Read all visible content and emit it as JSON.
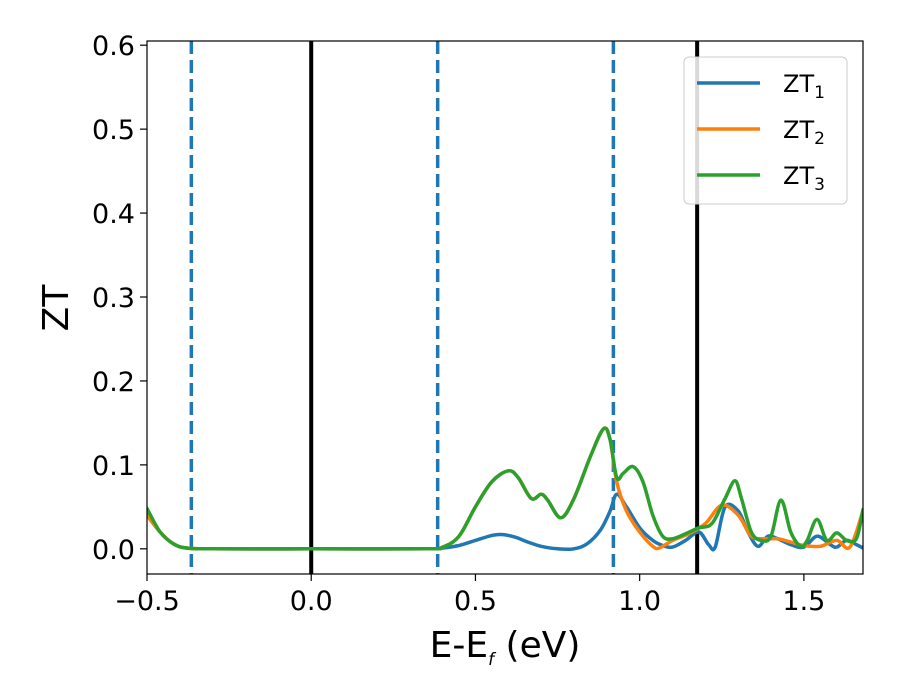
{
  "chart_data": {
    "type": "line",
    "xlabel": "E-E",
    "xlabel_sub": "f",
    "xlabel_unit": " (eV)",
    "ylabel": "ZT",
    "xlim": [
      -0.5,
      1.68
    ],
    "ylim": [
      -0.03,
      0.605
    ],
    "xticks": [
      -0.5,
      0.0,
      0.5,
      1.0,
      1.5
    ],
    "xtick_labels": [
      "−0.5",
      "0.0",
      "0.5",
      "1.0",
      "1.5"
    ],
    "yticks": [
      0.0,
      0.1,
      0.2,
      0.3,
      0.4,
      0.5,
      0.6
    ],
    "ytick_labels": [
      "0.0",
      "0.1",
      "0.2",
      "0.3",
      "0.4",
      "0.5",
      "0.6"
    ],
    "legend_placement": "top-right",
    "grid": false,
    "vlines": [
      {
        "x": -0.365,
        "style": "dashed",
        "color": "#1f77b4"
      },
      {
        "x": 0.0,
        "style": "solid",
        "color": "#000000"
      },
      {
        "x": 0.385,
        "style": "dashed",
        "color": "#1f77b4"
      },
      {
        "x": 0.92,
        "style": "dashed",
        "color": "#1f77b4"
      },
      {
        "x": 1.175,
        "style": "solid",
        "color": "#000000"
      }
    ],
    "series": [
      {
        "name": "ZT",
        "name_sub": "1",
        "color": "#1f77b4",
        "points": [
          [
            -0.5,
            0.04
          ],
          [
            -0.46,
            0.02
          ],
          [
            -0.42,
            0.006
          ],
          [
            -0.38,
            0.001
          ],
          [
            -0.3,
            0.0
          ],
          [
            0.0,
            0.0
          ],
          [
            0.35,
            0.0
          ],
          [
            0.4,
            0.001
          ],
          [
            0.45,
            0.004
          ],
          [
            0.5,
            0.01
          ],
          [
            0.55,
            0.016
          ],
          [
            0.58,
            0.017
          ],
          [
            0.62,
            0.014
          ],
          [
            0.66,
            0.008
          ],
          [
            0.7,
            0.003
          ],
          [
            0.75,
            0.0
          ],
          [
            0.8,
            0.0
          ],
          [
            0.84,
            0.006
          ],
          [
            0.88,
            0.022
          ],
          [
            0.91,
            0.045
          ],
          [
            0.93,
            0.065
          ],
          [
            0.96,
            0.05
          ],
          [
            1.0,
            0.025
          ],
          [
            1.04,
            0.01
          ],
          [
            1.07,
            0.004
          ],
          [
            1.1,
            0.002
          ],
          [
            1.14,
            0.01
          ],
          [
            1.18,
            0.02
          ],
          [
            1.21,
            0.005
          ],
          [
            1.23,
            0.002
          ],
          [
            1.26,
            0.05
          ],
          [
            1.3,
            0.045
          ],
          [
            1.33,
            0.02
          ],
          [
            1.36,
            0.003
          ],
          [
            1.39,
            0.015
          ],
          [
            1.42,
            0.012
          ],
          [
            1.46,
            0.005
          ],
          [
            1.5,
            0.002
          ],
          [
            1.54,
            0.015
          ],
          [
            1.58,
            0.005
          ],
          [
            1.6,
            0.002
          ],
          [
            1.63,
            0.01
          ],
          [
            1.66,
            0.005
          ],
          [
            1.68,
            0.001
          ]
        ]
      },
      {
        "name": "ZT",
        "name_sub": "2",
        "color": "#ff7f0e",
        "points": [
          [
            -0.5,
            0.04
          ],
          [
            -0.46,
            0.02
          ],
          [
            -0.42,
            0.006
          ],
          [
            -0.38,
            0.001
          ],
          [
            -0.3,
            0.0
          ],
          [
            0.0,
            0.0
          ],
          [
            0.35,
            0.0
          ],
          [
            0.4,
            0.002
          ],
          [
            0.45,
            0.015
          ],
          [
            0.5,
            0.05
          ],
          [
            0.55,
            0.08
          ],
          [
            0.6,
            0.093
          ],
          [
            0.63,
            0.085
          ],
          [
            0.67,
            0.06
          ],
          [
            0.7,
            0.065
          ],
          [
            0.72,
            0.058
          ],
          [
            0.76,
            0.037
          ],
          [
            0.8,
            0.06
          ],
          [
            0.85,
            0.11
          ],
          [
            0.89,
            0.143
          ],
          [
            0.91,
            0.13
          ],
          [
            0.93,
            0.08
          ],
          [
            0.96,
            0.045
          ],
          [
            1.0,
            0.02
          ],
          [
            1.04,
            0.003
          ],
          [
            1.06,
            0.001
          ],
          [
            1.1,
            0.01
          ],
          [
            1.15,
            0.018
          ],
          [
            1.2,
            0.03
          ],
          [
            1.25,
            0.052
          ],
          [
            1.3,
            0.04
          ],
          [
            1.34,
            0.015
          ],
          [
            1.38,
            0.012
          ],
          [
            1.42,
            0.012
          ],
          [
            1.46,
            0.008
          ],
          [
            1.5,
            0.004
          ],
          [
            1.55,
            0.003
          ],
          [
            1.6,
            0.01
          ],
          [
            1.64,
            0.002
          ],
          [
            1.68,
            0.045
          ]
        ]
      },
      {
        "name": "ZT",
        "name_sub": "3",
        "color": "#2ca02c",
        "points": [
          [
            -0.5,
            0.048
          ],
          [
            -0.46,
            0.02
          ],
          [
            -0.42,
            0.006
          ],
          [
            -0.38,
            0.001
          ],
          [
            -0.3,
            0.0
          ],
          [
            0.0,
            0.0
          ],
          [
            0.35,
            0.0
          ],
          [
            0.4,
            0.002
          ],
          [
            0.45,
            0.015
          ],
          [
            0.5,
            0.05
          ],
          [
            0.55,
            0.08
          ],
          [
            0.6,
            0.093
          ],
          [
            0.63,
            0.085
          ],
          [
            0.67,
            0.06
          ],
          [
            0.7,
            0.065
          ],
          [
            0.72,
            0.058
          ],
          [
            0.76,
            0.037
          ],
          [
            0.8,
            0.06
          ],
          [
            0.85,
            0.11
          ],
          [
            0.89,
            0.143
          ],
          [
            0.91,
            0.13
          ],
          [
            0.93,
            0.085
          ],
          [
            0.95,
            0.09
          ],
          [
            0.98,
            0.098
          ],
          [
            1.01,
            0.08
          ],
          [
            1.04,
            0.04
          ],
          [
            1.07,
            0.015
          ],
          [
            1.1,
            0.012
          ],
          [
            1.14,
            0.018
          ],
          [
            1.18,
            0.025
          ],
          [
            1.22,
            0.03
          ],
          [
            1.26,
            0.06
          ],
          [
            1.29,
            0.081
          ],
          [
            1.31,
            0.06
          ],
          [
            1.34,
            0.02
          ],
          [
            1.37,
            0.01
          ],
          [
            1.4,
            0.015
          ],
          [
            1.43,
            0.058
          ],
          [
            1.46,
            0.02
          ],
          [
            1.49,
            0.003
          ],
          [
            1.51,
            0.01
          ],
          [
            1.54,
            0.035
          ],
          [
            1.57,
            0.01
          ],
          [
            1.6,
            0.019
          ],
          [
            1.63,
            0.01
          ],
          [
            1.66,
            0.012
          ],
          [
            1.68,
            0.047
          ]
        ]
      }
    ]
  }
}
